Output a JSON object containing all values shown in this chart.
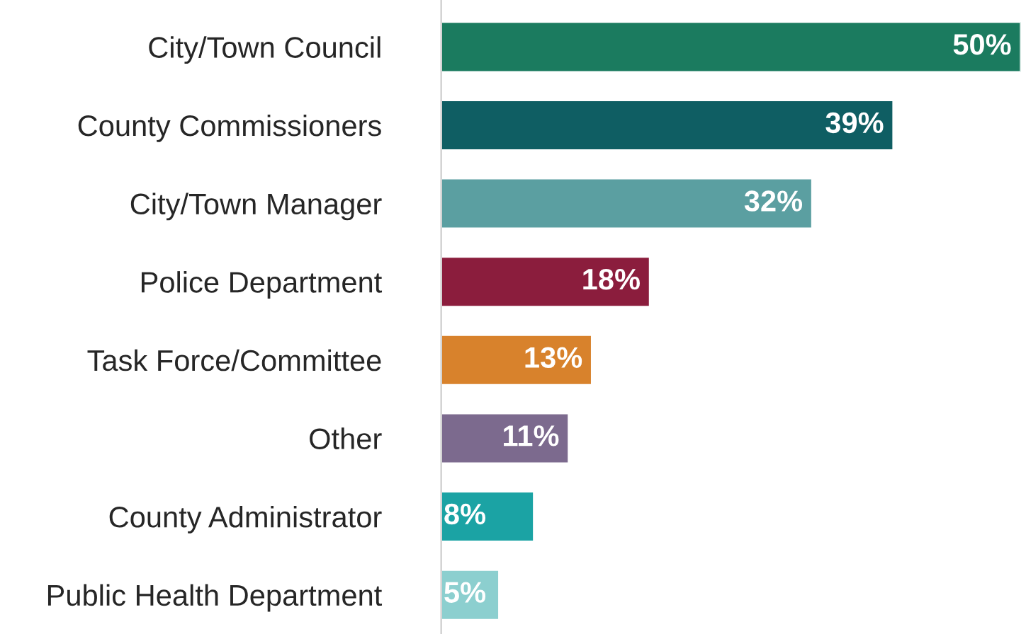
{
  "chart_data": {
    "type": "bar",
    "orientation": "horizontal",
    "categories": [
      "City/Town Council",
      "County Commissioners",
      "City/Town Manager",
      "Police Department",
      "Task Force/Committee",
      "Other",
      "County Administrator",
      "Public Health Department"
    ],
    "values": [
      50,
      39,
      32,
      18,
      13,
      11,
      8,
      5
    ],
    "value_labels": [
      "50%",
      "39%",
      "32%",
      "18%",
      "13%",
      "11%",
      "8%",
      "5%"
    ],
    "colors": [
      "#1b7b5f",
      "#0f5e63",
      "#5b9fa1",
      "#8b1d3d",
      "#d8822c",
      "#7c6a8e",
      "#1ba3a4",
      "#8ccfcf"
    ],
    "xlim": [
      0,
      50
    ],
    "grid": false,
    "legend": false
  }
}
